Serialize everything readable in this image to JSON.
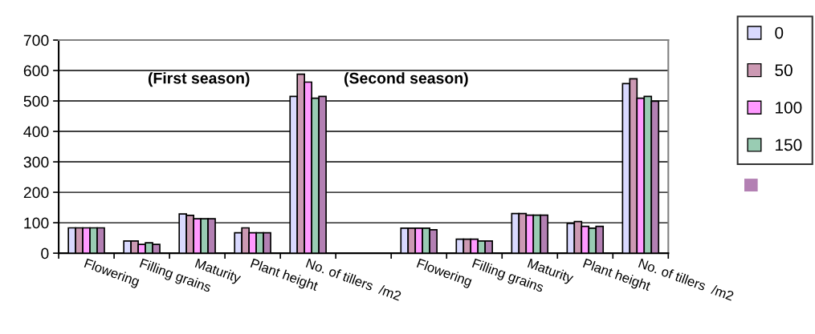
{
  "chart_data": {
    "type": "bar",
    "categories": [
      "Flowering",
      "Filling grains",
      "Maturity",
      "Plant height",
      "No. of tillers  /m2",
      null,
      "Flowering",
      "Filling grains",
      "Maturity",
      "Plant height",
      "No. of tillers  /m2"
    ],
    "series": [
      {
        "name": "0",
        "color": "#d9d9ff",
        "values": [
          83,
          40,
          129,
          67,
          515,
          null,
          82,
          46,
          130,
          98,
          557
        ]
      },
      {
        "name": "50",
        "color": "#cc99b3",
        "values": [
          83,
          40,
          124,
          83,
          588,
          null,
          82,
          46,
          130,
          104,
          573
        ]
      },
      {
        "name": "100",
        "color": "#ff99ff",
        "values": [
          83,
          29,
          113,
          67,
          562,
          null,
          82,
          46,
          125,
          88,
          509
        ]
      },
      {
        "name": "150",
        "color": "#99ccb3",
        "values": [
          83,
          34,
          113,
          67,
          509,
          null,
          82,
          40,
          125,
          82,
          515
        ]
      },
      {
        "color": "#b380b3",
        "values": [
          83,
          29,
          113,
          67,
          515,
          null,
          77,
          40,
          125,
          88,
          499
        ]
      }
    ],
    "ylim": [
      0,
      700
    ],
    "yticks": [
      0,
      100,
      200,
      300,
      400,
      500,
      600,
      700
    ],
    "grid": "y",
    "legend": "right",
    "annotations": [
      "(First season)",
      "(Second season)"
    ]
  }
}
